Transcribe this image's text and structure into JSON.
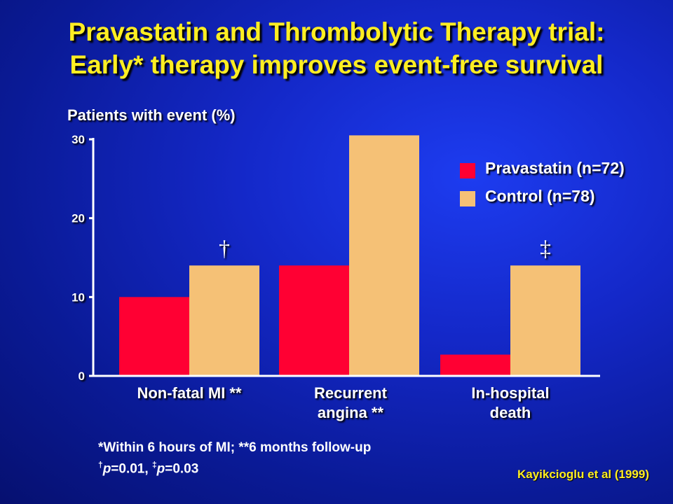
{
  "title": {
    "line1": "Pravastatin and Thrombolytic Therapy trial:",
    "line2": "Early* therapy improves event-free survival"
  },
  "colors": {
    "background": "#1428c8",
    "title": "#ffee22",
    "pravastatin": "#ff0033",
    "control": "#f5c176",
    "axis": "#ffffff"
  },
  "chart_data": {
    "type": "bar",
    "ylabel": "Patients with event (%)",
    "xlabel": "",
    "ylim": [
      0,
      30
    ],
    "yticks": [
      0,
      10,
      20,
      30
    ],
    "grid": false,
    "legend_position": "top-right",
    "categories": [
      "Non-fatal MI **",
      "Recurrent angina **",
      "In-hospital death"
    ],
    "category_lines": [
      [
        "Non-fatal MI **"
      ],
      [
        "Recurrent",
        "angina **"
      ],
      [
        "In-hospital",
        "death"
      ]
    ],
    "series": [
      {
        "name": "Pravastatin (n=72)",
        "color": "#ff0033",
        "values": [
          10,
          14,
          2.7
        ]
      },
      {
        "name": "Control (n=78)",
        "color": "#f5c176",
        "values": [
          14,
          30.5,
          14
        ]
      }
    ],
    "annotations": [
      {
        "category_index": 0,
        "text": "†"
      },
      {
        "category_index": 2,
        "text": "‡"
      }
    ]
  },
  "footnote": {
    "line1": "*Within 6 hours of MI; **6 months follow-up",
    "dagger": "†",
    "p_label_1": "p",
    "p_value_1": "=0.01, ",
    "ddagger": "‡",
    "p_label_2": "p",
    "p_value_2": "=0.03"
  },
  "citation": "Kayikcioglu et al (1999)"
}
